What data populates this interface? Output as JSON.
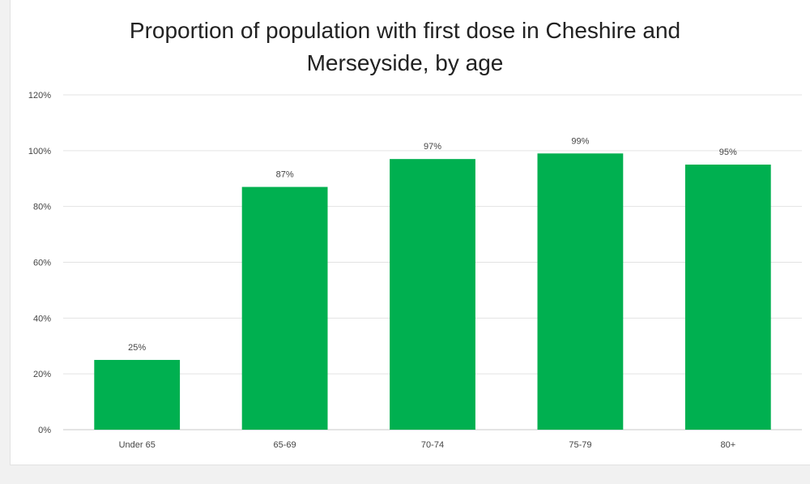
{
  "chart_data": {
    "type": "bar",
    "title": "Proportion of population with first dose in Cheshire and Merseyside, by age",
    "title_lines": [
      "Proportion of population with first dose in Cheshire and",
      "Merseyside, by age"
    ],
    "categories": [
      "Under 65",
      "65-69",
      "70-74",
      "75-79",
      "80+"
    ],
    "values": [
      25,
      87,
      97,
      99,
      95
    ],
    "value_labels": [
      "25%",
      "87%",
      "97%",
      "99%",
      "95%"
    ],
    "ylim": [
      0,
      120
    ],
    "y_ticks": [
      0,
      20,
      40,
      60,
      80,
      100,
      120
    ],
    "y_tick_labels": [
      "0%",
      "20%",
      "40%",
      "60%",
      "80%",
      "100%",
      "120%"
    ],
    "xlabel": "",
    "ylabel": "",
    "grid": true,
    "legend": "none",
    "bar_color": "#00b050"
  }
}
